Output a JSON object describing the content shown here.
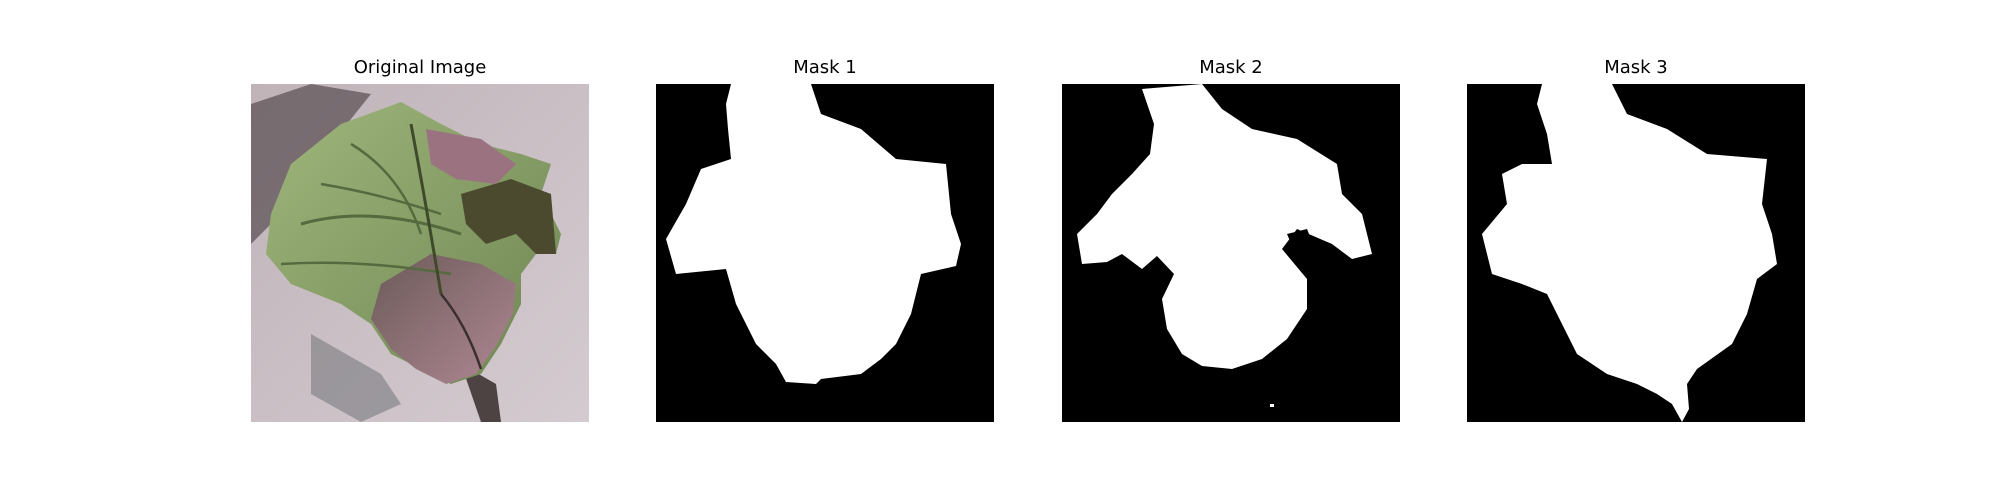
{
  "figure": {
    "panels": [
      {
        "title": "Original Image"
      },
      {
        "title": "Mask 1"
      },
      {
        "title": "Mask 2"
      },
      {
        "title": "Mask 3"
      }
    ]
  },
  "colors": {
    "mask_background": "#000000",
    "mask_foreground": "#ffffff",
    "photo_surface": "#c9bfc3",
    "leaf_green": "#8fa66a",
    "leaf_pink": "#a37a86",
    "leaf_dark": "#3a3a2e"
  }
}
